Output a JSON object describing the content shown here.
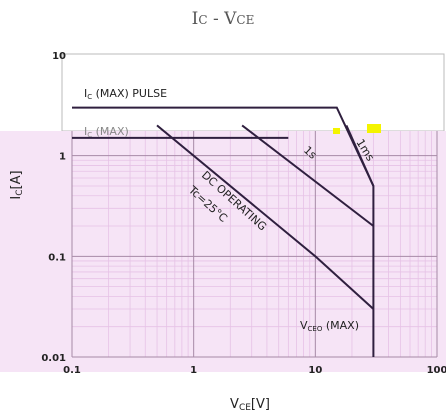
{
  "chart_data": {
    "type": "line",
    "title": "IC - VCE",
    "title_parts": {
      "main": "I",
      "sub": "C",
      "sep": " - ",
      "main2": "V",
      "sub2": "CE"
    },
    "xlabel": {
      "main": "V",
      "sub": "CE",
      "unit": "[V]"
    },
    "ylabel": {
      "main": "I",
      "sub": "C",
      "unit": "[A]"
    },
    "x_scale": "log",
    "y_scale": "log",
    "xlim": [
      0.1,
      100
    ],
    "ylim": [
      0.01,
      10
    ],
    "x_ticks": [
      {
        "value": 0.1,
        "label": "0.1"
      },
      {
        "value": 1,
        "label": "1"
      },
      {
        "value": 10,
        "label": "10"
      },
      {
        "value": 100,
        "label": "100"
      }
    ],
    "y_ticks": [
      {
        "value": 0.01,
        "label": "0.01"
      },
      {
        "value": 0.1,
        "label": "0.1"
      },
      {
        "value": 1,
        "label": "1"
      },
      {
        "value": 10,
        "label": "10"
      }
    ],
    "grid": true,
    "colors": {
      "plot_background": "#f6e4f6",
      "minor_grid": "#e6c2e6",
      "major_grid": "#a78aa7",
      "curve": "#2f1f3f",
      "text": "#222222",
      "title": "#555555",
      "highlight": "#f4f400"
    },
    "series": [
      {
        "key": "ic_max_pulse",
        "label_main": "I",
        "label_sub": "C",
        "label_rest": " (MAX) PULSE",
        "points": [
          [
            0.1,
            3.0
          ],
          [
            15,
            3.0
          ],
          [
            30,
            0.5
          ],
          [
            30,
            0.01
          ]
        ]
      },
      {
        "key": "ic_max",
        "label_main": "I",
        "label_sub": "C",
        "label_rest": " (MAX)",
        "points": [
          [
            0.1,
            1.5
          ],
          [
            6,
            1.5
          ]
        ]
      },
      {
        "key": "pulse_1ms",
        "label": "1ms",
        "points": [
          [
            18,
            2.0
          ],
          [
            30,
            0.5
          ]
        ]
      },
      {
        "key": "pulse_1s",
        "label": "1s",
        "points": [
          [
            2.5,
            2.0
          ],
          [
            30,
            0.2
          ]
        ]
      },
      {
        "key": "dc_operating",
        "label": "DC OPERATING",
        "condition": "Tc=25°C",
        "points": [
          [
            0.5,
            2.0
          ],
          [
            10,
            0.1
          ],
          [
            30,
            0.03
          ]
        ]
      }
    ],
    "annotations": [
      {
        "key": "vceo_max",
        "main": "V",
        "sub": "CEO",
        "rest": " (MAX)"
      }
    ]
  }
}
